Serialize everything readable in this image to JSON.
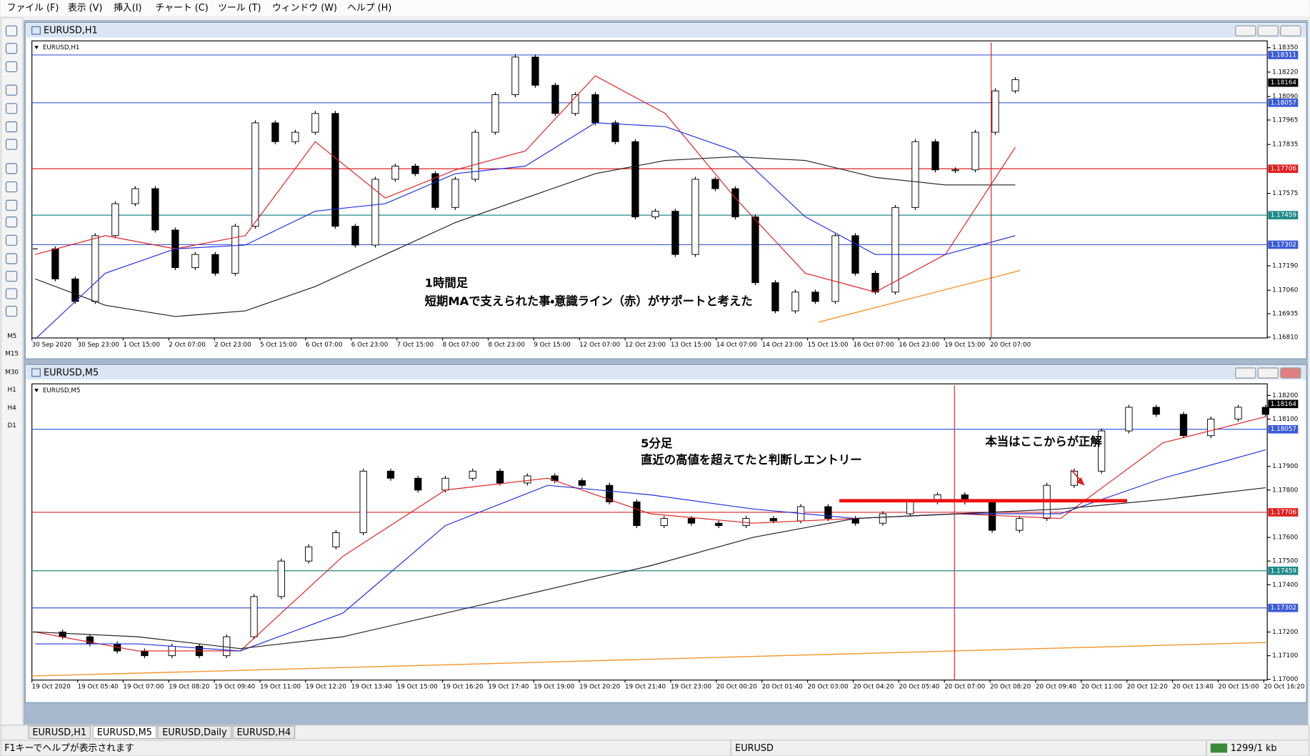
{
  "menu": [
    "ファイル (F)",
    "表示 (V)",
    "挿入(I)",
    "チャート (C)",
    "ツール (T)",
    "ウィンドウ (W)",
    "ヘルプ (H)"
  ],
  "timeframes": [
    "M5",
    "M15",
    "M30",
    "H1",
    "H4",
    "D1"
  ],
  "windows": [
    {
      "title": "EURUSD,H1",
      "symbol_label": "EURUSD,H1",
      "chart": {
        "type": "candlestick",
        "ylim": [
          1.16806,
          1.18386
        ],
        "yticks": [
          {
            "value": 1.1835,
            "label": "1.18350"
          },
          {
            "value": 1.1822,
            "label": "1.18220"
          },
          {
            "value": 1.1809,
            "label": "1.18090"
          },
          {
            "value": 1.17965,
            "label": "1.17965"
          },
          {
            "value": 1.17835,
            "label": "1.17835"
          },
          {
            "value": 1.17575,
            "label": "1.17575"
          },
          {
            "value": 1.1719,
            "label": "1.17190"
          },
          {
            "value": 1.1706,
            "label": "1.17060"
          },
          {
            "value": 1.16935,
            "label": "1.16935"
          },
          {
            "value": 1.1681,
            "label": "1.16810"
          }
        ],
        "levels": [
          {
            "value": 1.18311,
            "color": "#3b5bd6"
          },
          {
            "value": 1.18057,
            "color": "#3b5bd6"
          },
          {
            "value": 1.17706,
            "color": "#e02020"
          },
          {
            "value": 1.17459,
            "color": "#1f8a8a"
          },
          {
            "value": 1.17302,
            "color": "#3b5bd6"
          }
        ],
        "current_price": 1.18164,
        "time_labels": [
          "30 Sep 2020",
          "30 Sep 23:00",
          "1 Oct 15:00",
          "2 Oct 07:00",
          "2 Oct 23:00",
          "5 Oct 15:00",
          "6 Oct 07:00",
          "6 Oct 23:00",
          "7 Oct 15:00",
          "8 Oct 07:00",
          "8 Oct 23:00",
          "9 Oct 15:00",
          "12 Oct 07:00",
          "12 Oct 23:00",
          "13 Oct 15:00",
          "14 Oct 07:00",
          "14 Oct 23:00",
          "15 Oct 15:00",
          "16 Oct 07:00",
          "16 Oct 23:00",
          "19 Oct 15:00",
          "20 Oct 07:00"
        ],
        "closes": [
          1.1728,
          1.1712,
          1.17,
          1.1735,
          1.1752,
          1.176,
          1.1738,
          1.1718,
          1.1725,
          1.1715,
          1.174,
          1.1795,
          1.1785,
          1.179,
          1.18,
          1.174,
          1.173,
          1.1765,
          1.1772,
          1.1768,
          1.175,
          1.1765,
          1.179,
          1.181,
          1.183,
          1.1815,
          1.18,
          1.181,
          1.1795,
          1.1785,
          1.1745,
          1.1748,
          1.1725,
          1.1765,
          1.176,
          1.1745,
          1.171,
          1.1695,
          1.1705,
          1.17,
          1.1735,
          1.1715,
          1.1705,
          1.175,
          1.1785,
          1.177,
          1.177,
          1.179,
          1.1812,
          1.1818
        ],
        "moving_averages": [
          {
            "color": "#e02020",
            "values": [
              1.1725,
              1.1735,
              1.1728,
              1.1735,
              1.1785,
              1.1755,
              1.177,
              1.178,
              1.182,
              1.18,
              1.1755,
              1.1715,
              1.1705,
              1.1725,
              1.1782
            ]
          },
          {
            "color": "#2030e0",
            "values": [
              1.168,
              1.1715,
              1.1728,
              1.173,
              1.1748,
              1.1752,
              1.1768,
              1.1772,
              1.1795,
              1.1793,
              1.178,
              1.1745,
              1.1725,
              1.1725,
              1.1735
            ]
          },
          {
            "color": "#202020",
            "values": [
              1.1712,
              1.1698,
              1.1692,
              1.1695,
              1.1708,
              1.1725,
              1.1742,
              1.1755,
              1.1768,
              1.1775,
              1.1777,
              1.1775,
              1.1766,
              1.1762,
              1.1762
            ]
          }
        ],
        "trendline": {
          "color": "#f5962a",
          "values": [
            1.1689,
            1.17165
          ]
        },
        "annotations": [
          "1時間足",
          "短期MAで支えられた事・意識ライン（赤）がサポートと考えた"
        ]
      }
    },
    {
      "title": "EURUSD,M5",
      "symbol_label": "EURUSD,M5",
      "chart": {
        "type": "candlestick",
        "ylim": [
          1.16997,
          1.18249
        ],
        "yticks": [
          {
            "value": 1.182,
            "label": "1.18200"
          },
          {
            "value": 1.181,
            "label": "1.18100"
          },
          {
            "value": 1.179,
            "label": "1.17900"
          },
          {
            "value": 1.178,
            "label": "1.17800"
          },
          {
            "value": 1.176,
            "label": "1.17600"
          },
          {
            "value": 1.175,
            "label": "1.17500"
          },
          {
            "value": 1.174,
            "label": "1.17400"
          },
          {
            "value": 1.172,
            "label": "1.17200"
          },
          {
            "value": 1.171,
            "label": "1.17100"
          },
          {
            "value": 1.17,
            "label": "1.17000"
          }
        ],
        "levels": [
          {
            "value": 1.18057,
            "color": "#3b5bd6"
          },
          {
            "value": 1.17706,
            "color": "#e02020"
          },
          {
            "value": 1.17459,
            "color": "#1f8a8a"
          },
          {
            "value": 1.17302,
            "color": "#3b5bd6"
          }
        ],
        "current_price": 1.18164,
        "time_labels": [
          "19 Oct 2020",
          "19 Oct 05:40",
          "19 Oct 07:00",
          "19 Oct 08:20",
          "19 Oct 09:40",
          "19 Oct 11:00",
          "19 Oct 12:20",
          "19 Oct 13:40",
          "19 Oct 15:00",
          "19 Oct 16:20",
          "19 Oct 17:40",
          "19 Oct 19:00",
          "19 Oct 20:20",
          "19 Oct 21:40",
          "19 Oct 23:00",
          "20 Oct 00:20",
          "20 Oct 01:40",
          "20 Oct 03:00",
          "20 Oct 04:20",
          "20 Oct 05:40",
          "20 Oct 07:00",
          "20 Oct 08:20",
          "20 Oct 09:40",
          "20 Oct 11:00",
          "20 Oct 12:20",
          "20 Oct 13:40",
          "20 Oct 15:00",
          "20 Oct 16:20"
        ],
        "closes": [
          1.172,
          1.1718,
          1.1715,
          1.1712,
          1.171,
          1.1714,
          1.171,
          1.1718,
          1.1735,
          1.175,
          1.1756,
          1.1762,
          1.1788,
          1.1785,
          1.178,
          1.1785,
          1.1788,
          1.1783,
          1.1786,
          1.1784,
          1.1782,
          1.1775,
          1.1765,
          1.1768,
          1.1766,
          1.1765,
          1.1768,
          1.1767,
          1.1773,
          1.1768,
          1.1766,
          1.177,
          1.1775,
          1.1778,
          1.1775,
          1.1763,
          1.1768,
          1.1782,
          1.1788,
          1.1805,
          1.1815,
          1.1812,
          1.1803,
          1.181,
          1.1815,
          1.1812
        ],
        "moving_averages": [
          {
            "color": "#e02020",
            "values": [
              1.172,
              1.1712,
              1.1712,
              1.1752,
              1.178,
              1.1785,
              1.177,
              1.1766,
              1.1768,
              1.177,
              1.1768,
              1.18,
              1.1811
            ]
          },
          {
            "color": "#2030e0",
            "values": [
              1.1715,
              1.1715,
              1.1712,
              1.1728,
              1.1765,
              1.1782,
              1.1778,
              1.1772,
              1.1768,
              1.177,
              1.177,
              1.1785,
              1.1797
            ]
          },
          {
            "color": "#202020",
            "values": [
              1.172,
              1.1718,
              1.1713,
              1.1718,
              1.1728,
              1.1738,
              1.1748,
              1.176,
              1.1768,
              1.177,
              1.1772,
              1.1776,
              1.1781
            ]
          }
        ],
        "trendline": {
          "color": "#f5962a",
          "values": [
            1.17014,
            1.17156
          ]
        },
        "entry_line": {
          "color": "#ee1111",
          "value": 1.17755
        },
        "annotations": [
          "5分足",
          "直近の高値を超えてたと判断しエントリー",
          "本当はここからが正解"
        ]
      }
    }
  ],
  "tabs": [
    "EURUSD,H1",
    "EURUSD,M5",
    "EURUSD,Daily",
    "EURUSD,H4"
  ],
  "status": {
    "help": "F1キーでヘルプが表示されます",
    "symbol": "EURUSD",
    "traffic": "1299/1 kb"
  }
}
